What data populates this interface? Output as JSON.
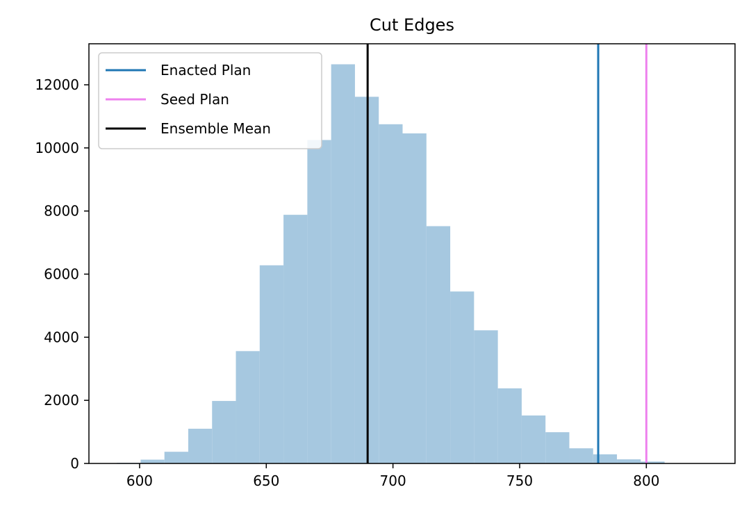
{
  "chart_data": {
    "type": "bar",
    "title": "Cut Edges",
    "xlabel": "",
    "ylabel": "",
    "xlim": [
      580,
      835
    ],
    "ylim": [
      0,
      13300
    ],
    "xticks": [
      600,
      650,
      700,
      750,
      800
    ],
    "yticks": [
      0,
      2000,
      4000,
      6000,
      8000,
      10000,
      12000
    ],
    "bin_width": 9.4,
    "bin_starts": [
      591,
      600.4,
      609.8,
      619.2,
      628.6,
      638,
      647.4,
      656.8,
      666.2,
      675.6,
      685,
      694.4,
      703.8,
      713.2,
      722.6,
      732,
      741.4,
      750.8,
      760.2,
      769.6,
      779,
      788.4,
      797.8
    ],
    "counts": [
      20,
      120,
      370,
      1100,
      1980,
      3560,
      6280,
      7880,
      10250,
      12650,
      11620,
      10750,
      10460,
      7520,
      5450,
      4220,
      2380,
      1520,
      990,
      480,
      290,
      130,
      60
    ],
    "bar_color": "#a6c8e0",
    "vlines": [
      {
        "name": "Enacted Plan",
        "x": 781,
        "color": "#1f77b4"
      },
      {
        "name": "Seed Plan",
        "x": 800,
        "color": "#ee82ee"
      },
      {
        "name": "Ensemble Mean",
        "x": 690,
        "color": "#000000"
      }
    ],
    "legend_position": "top-left",
    "grid": false
  }
}
